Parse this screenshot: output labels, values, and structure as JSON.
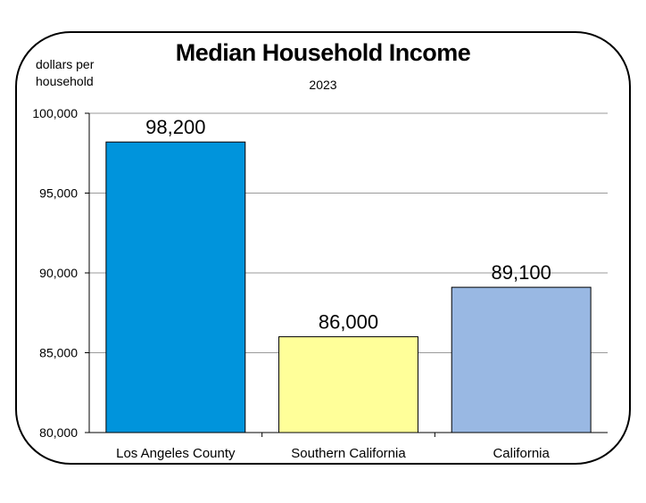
{
  "chart_data": {
    "type": "bar",
    "title": "Median Household Income",
    "subtitle": "2023",
    "ylabel": [
      "dollars per",
      "household"
    ],
    "ylim": [
      80000,
      100000
    ],
    "yticks": [
      80000,
      85000,
      90000,
      95000,
      100000
    ],
    "ytick_labels": [
      "80,000",
      "85,000",
      "90,000",
      "95,000",
      "100,000"
    ],
    "categories": [
      "Los Angeles County",
      "Southern California",
      "California"
    ],
    "values": [
      98200,
      86000,
      89100
    ],
    "value_labels": [
      "98,200",
      "86,000",
      "89,100"
    ],
    "colors": [
      "#0094dc",
      "#ffff99",
      "#99b8e3"
    ],
    "grid": true
  }
}
